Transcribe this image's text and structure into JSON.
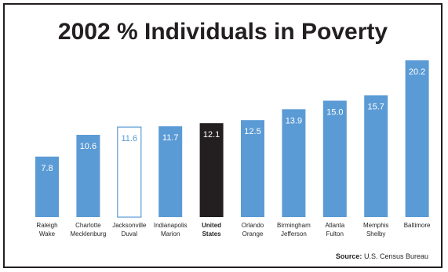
{
  "chart_data": {
    "type": "bar",
    "title": "2002 % Individuals in Poverty",
    "categories": [
      [
        "Raleigh",
        "Wake"
      ],
      [
        "Charlotte",
        "Mecklenburg"
      ],
      [
        "Jacksonville",
        "Duval"
      ],
      [
        "Indianapolis",
        "Marion"
      ],
      [
        "United",
        "States"
      ],
      [
        "Orlando",
        "Orange"
      ],
      [
        "Birmingham",
        "Jefferson"
      ],
      [
        "Atlanta",
        "Fulton"
      ],
      [
        "Memphis",
        "Shelby"
      ],
      [
        "Baltimore"
      ]
    ],
    "values": [
      7.8,
      10.6,
      11.6,
      11.7,
      12.1,
      12.5,
      13.9,
      15.0,
      15.7,
      20.2
    ],
    "value_labels": [
      "7.8",
      "10.6",
      "11.6",
      "11.7",
      "12.1",
      "12.5",
      "13.9",
      "15.0",
      "15.7",
      "20.2"
    ],
    "bar_styles": [
      "fill",
      "fill",
      "outline",
      "fill",
      "highlight",
      "fill",
      "fill",
      "fill",
      "fill",
      "fill"
    ],
    "bold_categories": [
      4
    ],
    "ylim": [
      0,
      20.8
    ],
    "xlabel": "",
    "ylabel": "",
    "grid": false,
    "legend": "none"
  },
  "source": {
    "label": "Source:",
    "text": "U.S. Census Bureau"
  },
  "colors": {
    "bar": "#5b9bd5",
    "highlight": "#231f20",
    "outline_bg": "#ffffff",
    "label_on_bar": "#ffffff",
    "axis_text": "#231f20"
  }
}
